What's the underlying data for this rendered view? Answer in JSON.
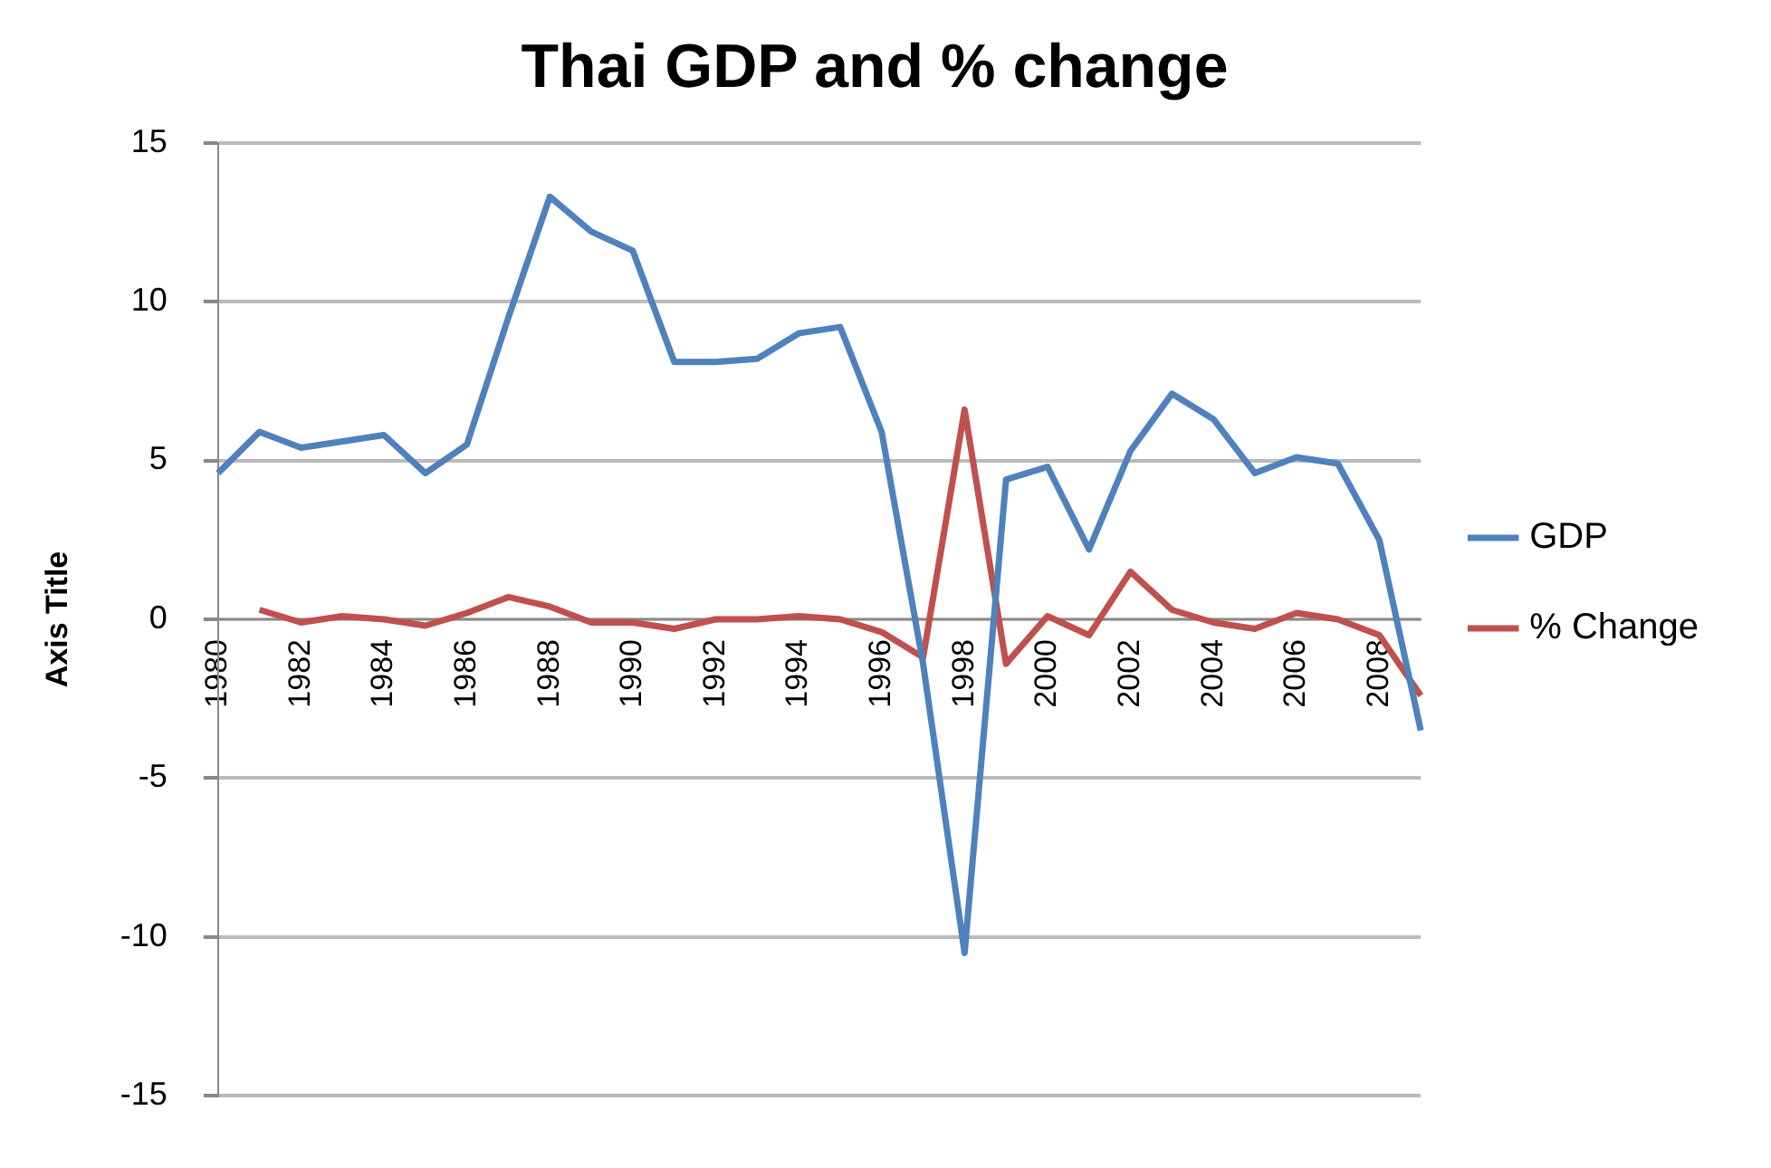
{
  "chart_data": {
    "type": "line",
    "title": "Thai GDP and % change",
    "ylabel": "Axis Title",
    "categories": [
      "1980",
      null,
      "1982",
      null,
      "1984",
      null,
      "1986",
      null,
      "1988",
      null,
      "1990",
      null,
      "1992",
      null,
      "1994",
      null,
      "1996",
      null,
      "1998",
      null,
      "2000",
      null,
      "2002",
      null,
      "2004",
      null,
      "2006",
      null,
      "2008",
      null
    ],
    "series": [
      {
        "name": "GDP",
        "color": "#4f81bd",
        "values": [
          4.6,
          5.9,
          5.4,
          5.6,
          5.8,
          4.6,
          5.5,
          9.5,
          13.3,
          12.2,
          11.6,
          8.1,
          8.1,
          8.2,
          9.0,
          9.2,
          5.9,
          -1.4,
          -10.5,
          4.4,
          4.8,
          2.2,
          5.3,
          7.1,
          6.3,
          4.6,
          5.1,
          4.9,
          2.5,
          -3.5
        ]
      },
      {
        "name": "% Change",
        "color": "#c0504d",
        "values": [
          null,
          0.3,
          -0.1,
          0.1,
          0.0,
          -0.2,
          0.2,
          0.7,
          0.4,
          -0.1,
          -0.1,
          -0.3,
          0.0,
          0.0,
          0.1,
          0.0,
          -0.4,
          -1.2,
          6.6,
          -1.4,
          0.1,
          -0.5,
          1.5,
          0.3,
          -0.1,
          -0.3,
          0.2,
          0.0,
          -0.5,
          -2.4
        ]
      }
    ],
    "ylim": [
      -15,
      15
    ],
    "yticks": [
      -15,
      -10,
      -5,
      0,
      5,
      10,
      15
    ],
    "grid": "y",
    "legend": "right",
    "marker": "none",
    "line_style": "solid"
  }
}
